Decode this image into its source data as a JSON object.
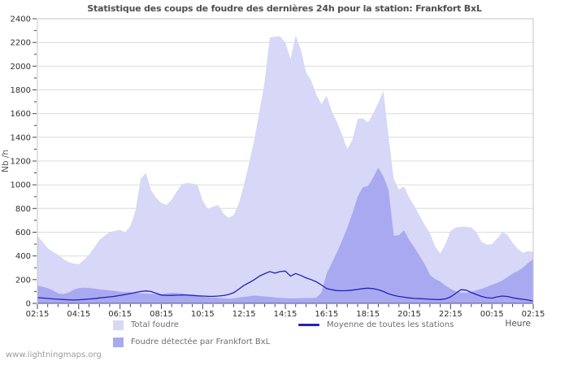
{
  "watermark": "www.lightningmaps.org",
  "chart_data": {
    "type": "area",
    "title": "Statistique des coups de foudre des dernières 24h pour la station: Frankfort BxL",
    "xlabel": "Heure",
    "ylabel": "Nb /h",
    "ylim": [
      0,
      2400
    ],
    "y_tick_step": 200,
    "y_minor_tick_step": 100,
    "x_span_hours": 24,
    "x_sample_step_hours": 0.25,
    "x_major_tick_every_hours": 2,
    "x_minor_tick_every_hours": 0.5,
    "x_tick_labels": [
      "02:15",
      "04:15",
      "06:15",
      "08:15",
      "10:15",
      "12:15",
      "14:15",
      "16:15",
      "18:15",
      "20:15",
      "22:15",
      "00:15",
      "02:15"
    ],
    "grid": "horizontal-200-step",
    "legend_position": "bottom",
    "colors": {
      "background": "#ffffff",
      "frame": "#c6c6c6",
      "grid": "#dcdcdc",
      "axis_bottom": "#55557a",
      "tick": "#444455",
      "title_text": "#4f4f4f",
      "legend_text": "#6e6e6e",
      "watermark_text": "#9c9c9c"
    },
    "series": [
      {
        "name": "Total foudre",
        "type": "area",
        "color": "#d7d7f7",
        "values": [
          570,
          520,
          465,
          435,
          410,
          375,
          350,
          335,
          330,
          365,
          410,
          470,
          535,
          570,
          600,
          610,
          620,
          600,
          650,
          780,
          1050,
          1100,
          955,
          890,
          845,
          830,
          875,
          945,
          1005,
          1015,
          1010,
          1000,
          865,
          795,
          815,
          830,
          760,
          720,
          745,
          840,
          1000,
          1180,
          1380,
          1620,
          1870,
          2240,
          2250,
          2250,
          2200,
          2060,
          2260,
          2140,
          1950,
          1880,
          1760,
          1680,
          1750,
          1620,
          1530,
          1420,
          1300,
          1380,
          1555,
          1560,
          1525,
          1600,
          1690,
          1790,
          1400,
          1050,
          960,
          985,
          890,
          820,
          740,
          660,
          590,
          480,
          420,
          500,
          610,
          640,
          645,
          645,
          640,
          600,
          520,
          495,
          500,
          545,
          600,
          580,
          510,
          460,
          425,
          440,
          435
        ]
      },
      {
        "name": "Foudre détectée par Frankfort BxL",
        "type": "area",
        "color": "#a9a9f2",
        "values": [
          150,
          140,
          128,
          110,
          85,
          78,
          90,
          115,
          128,
          132,
          130,
          125,
          118,
          114,
          110,
          104,
          98,
          96,
          94,
          90,
          85,
          83,
          80,
          78,
          78,
          85,
          90,
          87,
          84,
          78,
          72,
          68,
          56,
          52,
          49,
          46,
          43,
          40,
          42,
          48,
          55,
          60,
          66,
          62,
          58,
          55,
          50,
          46,
          44,
          42,
          42,
          44,
          45,
          45,
          48,
          90,
          250,
          340,
          430,
          530,
          640,
          760,
          900,
          978,
          990,
          1060,
          1145,
          1070,
          955,
          570,
          575,
          615,
          533,
          470,
          400,
          330,
          240,
          205,
          185,
          150,
          123,
          103,
          92,
          90,
          98,
          112,
          123,
          140,
          157,
          172,
          192,
          220,
          250,
          272,
          300,
          340,
          372
        ]
      },
      {
        "name": "Moyenne de toutes les stations",
        "type": "line",
        "color": "#2121bd",
        "values": [
          48,
          45,
          42,
          38,
          35,
          32,
          30,
          28,
          30,
          33,
          37,
          40,
          46,
          50,
          55,
          60,
          68,
          75,
          82,
          92,
          100,
          105,
          100,
          85,
          70,
          68,
          67,
          69,
          71,
          69,
          67,
          64,
          62,
          60,
          59,
          62,
          66,
          75,
          90,
          120,
          152,
          175,
          200,
          230,
          250,
          268,
          255,
          268,
          272,
          230,
          252,
          235,
          215,
          200,
          182,
          155,
          125,
          115,
          108,
          106,
          108,
          112,
          118,
          125,
          128,
          125,
          115,
          100,
          80,
          68,
          58,
          52,
          46,
          42,
          40,
          38,
          35,
          33,
          32,
          38,
          55,
          85,
          115,
          112,
          92,
          75,
          58,
          48,
          44,
          55,
          62,
          58,
          48,
          40,
          34,
          28,
          20
        ]
      }
    ]
  }
}
